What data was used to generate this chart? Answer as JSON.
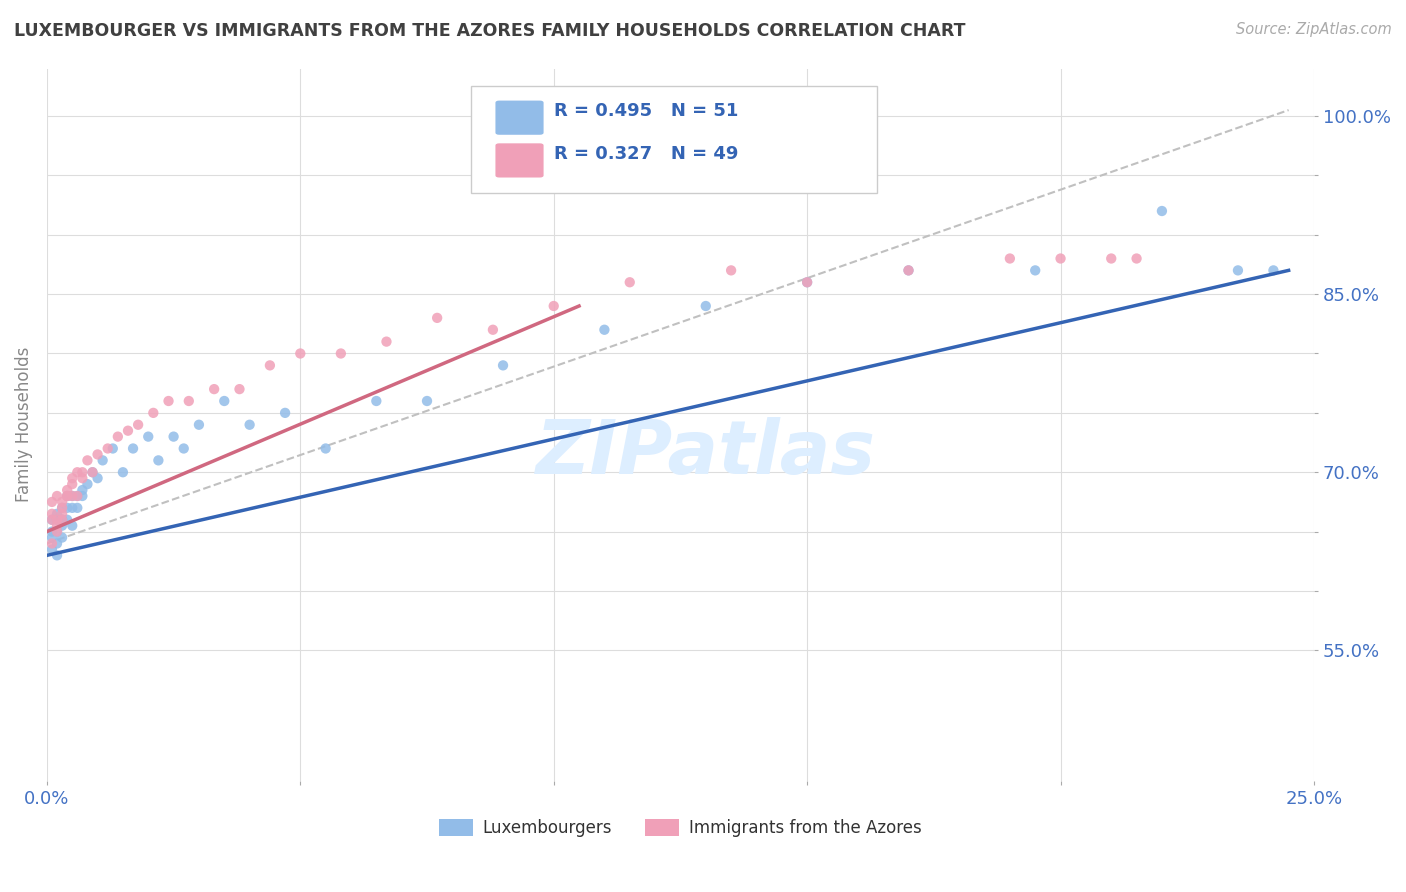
{
  "title": "LUXEMBOURGER VS IMMIGRANTS FROM THE AZORES FAMILY HOUSEHOLDS CORRELATION CHART",
  "source_text": "Source: ZipAtlas.com",
  "ylabel": "Family Households",
  "xlim": [
    0.0,
    0.25
  ],
  "ylim": [
    0.44,
    1.04
  ],
  "blue_color": "#92bce8",
  "pink_color": "#f0a0b8",
  "blue_line_color": "#3464b4",
  "pink_line_color": "#d06880",
  "R_blue": 0.495,
  "N_blue": 51,
  "R_pink": 0.327,
  "N_pink": 49,
  "legend_label_blue": "Luxembourgers",
  "legend_label_pink": "Immigrants from the Azores",
  "watermark": "ZIPatlas",
  "background_color": "#ffffff",
  "grid_color": "#dddddd",
  "title_color": "#404040",
  "tick_label_color": "#4472c4",
  "blue_trend_x0": 0.0,
  "blue_trend_y0": 0.63,
  "blue_trend_x1": 0.245,
  "blue_trend_y1": 0.87,
  "pink_trend_x0": 0.0,
  "pink_trend_y0": 0.65,
  "pink_trend_x1": 0.105,
  "pink_trend_y1": 0.84,
  "ref_line_x0": 0.0,
  "ref_line_y0": 0.64,
  "ref_line_x1": 0.245,
  "ref_line_y1": 1.005,
  "blue_x": [
    0.001,
    0.001,
    0.001,
    0.001,
    0.002,
    0.002,
    0.002,
    0.002,
    0.002,
    0.003,
    0.003,
    0.003,
    0.003,
    0.003,
    0.004,
    0.004,
    0.004,
    0.005,
    0.005,
    0.005,
    0.006,
    0.006,
    0.007,
    0.007,
    0.008,
    0.009,
    0.01,
    0.011,
    0.013,
    0.015,
    0.017,
    0.02,
    0.022,
    0.025,
    0.027,
    0.03,
    0.035,
    0.04,
    0.047,
    0.055,
    0.065,
    0.075,
    0.09,
    0.11,
    0.13,
    0.15,
    0.17,
    0.195,
    0.22,
    0.235,
    0.242
  ],
  "blue_y": [
    0.635,
    0.645,
    0.65,
    0.66,
    0.64,
    0.65,
    0.66,
    0.665,
    0.63,
    0.655,
    0.66,
    0.67,
    0.645,
    0.66,
    0.67,
    0.66,
    0.68,
    0.67,
    0.655,
    0.68,
    0.67,
    0.68,
    0.68,
    0.685,
    0.69,
    0.7,
    0.695,
    0.71,
    0.72,
    0.7,
    0.72,
    0.73,
    0.71,
    0.73,
    0.72,
    0.74,
    0.76,
    0.74,
    0.75,
    0.72,
    0.76,
    0.76,
    0.79,
    0.82,
    0.84,
    0.86,
    0.87,
    0.87,
    0.92,
    0.87,
    0.87
  ],
  "pink_x": [
    0.001,
    0.001,
    0.001,
    0.001,
    0.002,
    0.002,
    0.002,
    0.002,
    0.003,
    0.003,
    0.003,
    0.003,
    0.004,
    0.004,
    0.004,
    0.005,
    0.005,
    0.005,
    0.006,
    0.006,
    0.007,
    0.007,
    0.008,
    0.009,
    0.01,
    0.012,
    0.014,
    0.016,
    0.018,
    0.021,
    0.024,
    0.028,
    0.033,
    0.038,
    0.044,
    0.05,
    0.058,
    0.067,
    0.077,
    0.088,
    0.1,
    0.115,
    0.135,
    0.15,
    0.17,
    0.19,
    0.2,
    0.21,
    0.215
  ],
  "pink_y": [
    0.64,
    0.665,
    0.675,
    0.66,
    0.65,
    0.655,
    0.66,
    0.68,
    0.665,
    0.66,
    0.67,
    0.675,
    0.68,
    0.685,
    0.68,
    0.68,
    0.69,
    0.695,
    0.7,
    0.68,
    0.695,
    0.7,
    0.71,
    0.7,
    0.715,
    0.72,
    0.73,
    0.735,
    0.74,
    0.75,
    0.76,
    0.76,
    0.77,
    0.77,
    0.79,
    0.8,
    0.8,
    0.81,
    0.83,
    0.82,
    0.84,
    0.86,
    0.87,
    0.86,
    0.87,
    0.88,
    0.88,
    0.88,
    0.88
  ]
}
